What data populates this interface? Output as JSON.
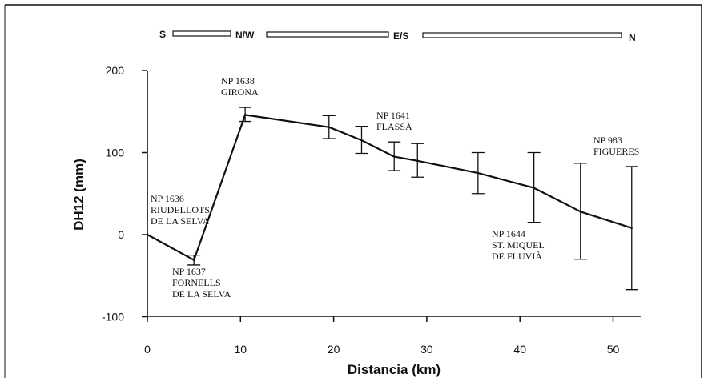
{
  "chart_data": {
    "type": "line",
    "title": "",
    "xlabel": "Distancia  (km)",
    "ylabel": "DH12  (mm)",
    "xlim": [
      0,
      54
    ],
    "ylim": [
      -100,
      200
    ],
    "xticks": [
      "0",
      "10",
      "20",
      "30",
      "40",
      "50"
    ],
    "yticks": [
      "200",
      "100",
      "0",
      "-100"
    ],
    "direction_labels": [
      "S",
      "N/W",
      "E/S",
      "N"
    ],
    "series": [
      {
        "points": [
          {
            "x": 0,
            "y": 0
          },
          {
            "x": 5,
            "y": -31,
            "err_low": -37,
            "err_high": -25
          },
          {
            "x": 10.5,
            "y": 146,
            "err_low": 138,
            "err_high": 155
          },
          {
            "x": 19.5,
            "y": 131,
            "err_low": 117,
            "err_high": 145
          },
          {
            "x": 23,
            "y": 115,
            "err_low": 99,
            "err_high": 132
          },
          {
            "x": 26.5,
            "y": 95,
            "err_low": 78,
            "err_high": 113
          },
          {
            "x": 29,
            "y": 90,
            "err_low": 70,
            "err_high": 111
          },
          {
            "x": 35.5,
            "y": 75,
            "err_low": 50,
            "err_high": 100
          },
          {
            "x": 41.5,
            "y": 57,
            "err_low": 15,
            "err_high": 100
          },
          {
            "x": 46.5,
            "y": 28,
            "err_low": -30,
            "err_high": 87
          },
          {
            "x": 52,
            "y": 8,
            "err_low": -67,
            "err_high": 83
          }
        ]
      }
    ],
    "annotations": [
      {
        "lines": [
          "NP  1636",
          "RIUDELLOTS",
          "DE LA SELVA"
        ]
      },
      {
        "lines": [
          "NP  1637",
          "FORNELLS",
          "DE LA SELVA"
        ]
      },
      {
        "lines": [
          "NP  1638",
          "GIRONA"
        ]
      },
      {
        "lines": [
          "NP  1641",
          "FLASSÀ"
        ]
      },
      {
        "lines": [
          "NP  1644",
          "ST.  MIQUEL",
          "DE  FLUVIÀ"
        ]
      },
      {
        "lines": [
          "NP  983",
          "FIGUERES"
        ]
      }
    ]
  }
}
